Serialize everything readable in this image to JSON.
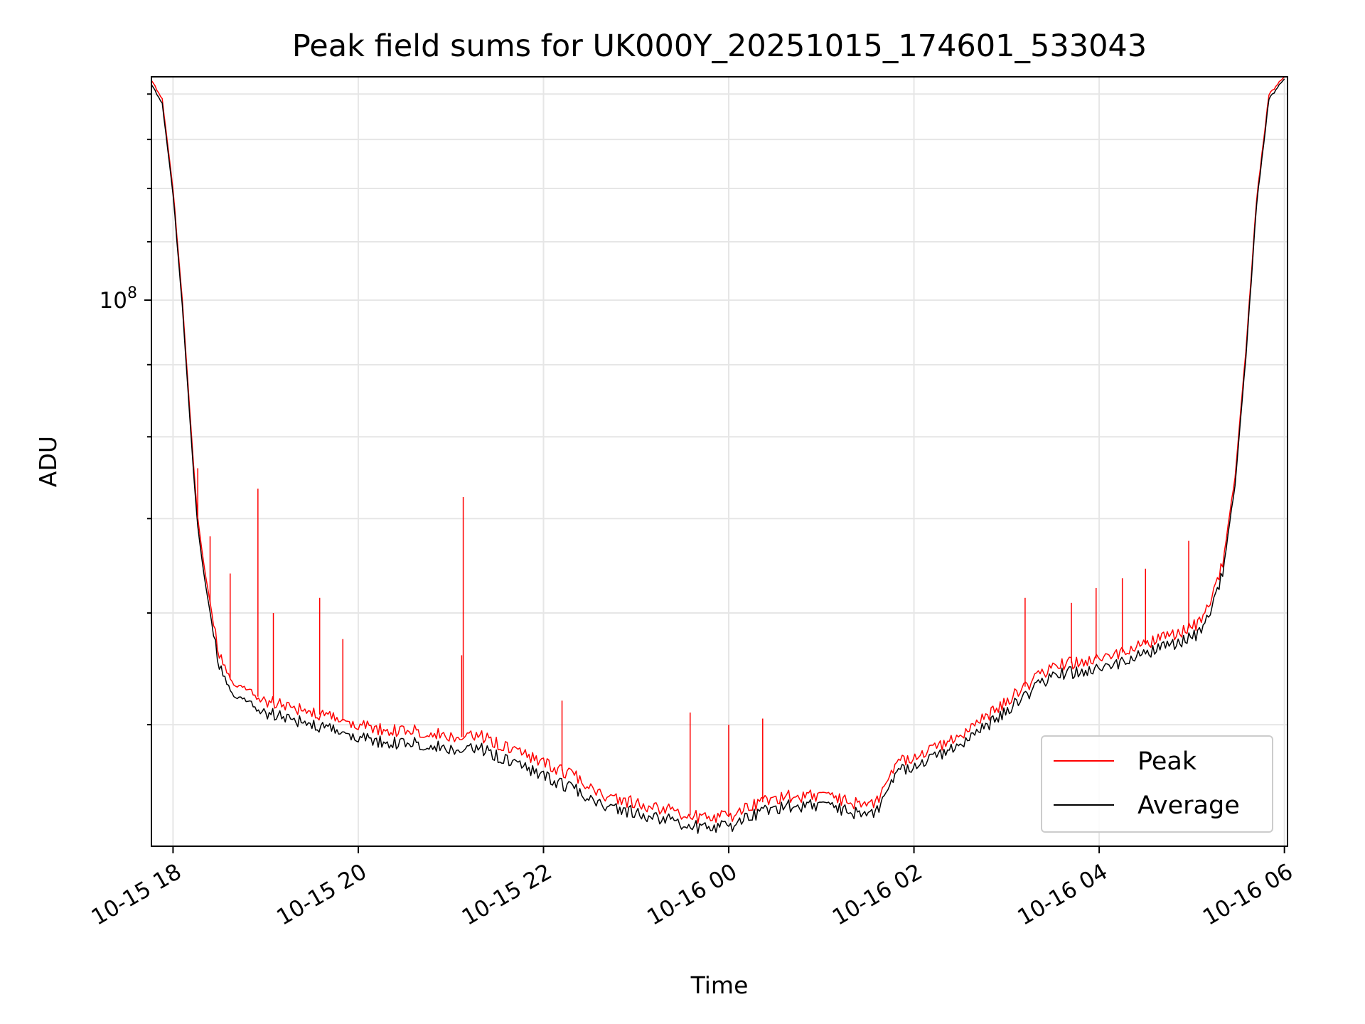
{
  "chart_data": {
    "type": "line",
    "title": "Peak field sums for UK000Y_20251015_174601_533043",
    "xlabel": "Time",
    "ylabel": "ADU",
    "yscale": "log",
    "xlim": [
      "2025-10-15T17:46",
      "2025-10-16T06:02"
    ],
    "ylim": [
      41000000,
      144000000
    ],
    "x_tick_labels": [
      "10-15 18",
      "10-15 20",
      "10-15 22",
      "10-16 00",
      "10-16 02",
      "10-16 04",
      "10-16 06"
    ],
    "y_tick_labels": [
      {
        "base": "10",
        "exp": "8",
        "value": 100000000
      }
    ],
    "grid": true,
    "legend_position": "lower right",
    "colors": {
      "peak": "#ff0000",
      "average": "#000000",
      "grid": "#e6e6e6"
    },
    "series": [
      {
        "name": "Peak",
        "x": [
          "2025-10-15T17:46",
          "2025-10-15T17:53",
          "2025-10-15T18:00",
          "2025-10-15T18:06",
          "2025-10-15T18:12",
          "2025-10-15T18:16",
          "2025-10-15T18:20",
          "2025-10-15T18:25",
          "2025-10-15T18:30",
          "2025-10-15T18:36",
          "2025-10-15T18:45",
          "2025-10-15T19:00",
          "2025-10-15T19:15",
          "2025-10-15T19:30",
          "2025-10-15T19:45",
          "2025-10-15T20:00",
          "2025-10-15T20:20",
          "2025-10-15T20:40",
          "2025-10-15T21:00",
          "2025-10-15T21:20",
          "2025-10-15T21:40",
          "2025-10-15T22:00",
          "2025-10-15T22:20",
          "2025-10-15T22:40",
          "2025-10-15T23:00",
          "2025-10-15T23:20",
          "2025-10-15T23:40",
          "2025-10-16T00:00",
          "2025-10-16T00:20",
          "2025-10-16T00:40",
          "2025-10-16T01:00",
          "2025-10-16T01:20",
          "2025-10-16T01:35",
          "2025-10-16T01:50",
          "2025-10-16T02:10",
          "2025-10-16T02:30",
          "2025-10-16T02:50",
          "2025-10-16T03:10",
          "2025-10-16T03:30",
          "2025-10-16T03:50",
          "2025-10-16T04:10",
          "2025-10-16T04:30",
          "2025-10-16T04:50",
          "2025-10-16T05:05",
          "2025-10-16T05:12",
          "2025-10-16T05:20",
          "2025-10-16T05:28",
          "2025-10-16T05:35",
          "2025-10-16T05:42",
          "2025-10-16T05:50",
          "2025-10-16T06:00"
        ],
        "y": [
          143000000,
          139000000,
          120000000,
          100000000,
          80000000,
          70000000,
          65000000,
          60000000,
          56000000,
          54000000,
          53000000,
          52000000,
          51500000,
          51000000,
          50500000,
          50000000,
          49500000,
          49500000,
          49000000,
          49000000,
          48000000,
          47000000,
          46000000,
          44500000,
          44000000,
          43500000,
          43000000,
          43000000,
          44000000,
          44500000,
          44500000,
          44000000,
          44000000,
          47000000,
          48000000,
          49000000,
          51000000,
          53000000,
          55000000,
          55500000,
          56000000,
          57000000,
          58000000,
          59000000,
          61000000,
          65000000,
          75000000,
          92000000,
          118000000,
          140000000,
          144000000
        ]
      },
      {
        "name": "Average",
        "x": [
          "2025-10-15T17:46",
          "2025-10-15T17:53",
          "2025-10-15T18:00",
          "2025-10-15T18:06",
          "2025-10-15T18:12",
          "2025-10-15T18:16",
          "2025-10-15T18:20",
          "2025-10-15T18:25",
          "2025-10-15T18:30",
          "2025-10-15T18:36",
          "2025-10-15T18:45",
          "2025-10-15T19:00",
          "2025-10-15T19:15",
          "2025-10-15T19:30",
          "2025-10-15T19:45",
          "2025-10-15T20:00",
          "2025-10-15T20:20",
          "2025-10-15T20:40",
          "2025-10-15T21:00",
          "2025-10-15T21:20",
          "2025-10-15T21:40",
          "2025-10-15T22:00",
          "2025-10-15T22:20",
          "2025-10-15T22:40",
          "2025-10-15T23:00",
          "2025-10-15T23:20",
          "2025-10-15T23:40",
          "2025-10-16T00:00",
          "2025-10-16T00:20",
          "2025-10-16T00:40",
          "2025-10-16T01:00",
          "2025-10-16T01:20",
          "2025-10-16T01:35",
          "2025-10-16T01:50",
          "2025-10-16T02:10",
          "2025-10-16T02:30",
          "2025-10-16T02:50",
          "2025-10-16T03:10",
          "2025-10-16T03:30",
          "2025-10-16T03:50",
          "2025-10-16T04:10",
          "2025-10-16T04:30",
          "2025-10-16T04:50",
          "2025-10-16T05:05",
          "2025-10-16T05:12",
          "2025-10-16T05:20",
          "2025-10-16T05:28",
          "2025-10-16T05:35",
          "2025-10-16T05:42",
          "2025-10-16T05:50",
          "2025-10-16T06:00"
        ],
        "y": [
          142000000,
          138000000,
          119000000,
          99000000,
          79000000,
          69000000,
          64000000,
          59000000,
          55000000,
          53000000,
          52000000,
          51000000,
          50500000,
          50000000,
          49500000,
          49000000,
          48500000,
          48500000,
          48000000,
          48000000,
          47000000,
          46000000,
          45000000,
          43800000,
          43300000,
          42800000,
          42300000,
          42300000,
          43300000,
          43800000,
          43800000,
          43300000,
          43300000,
          46300000,
          47300000,
          48300000,
          50200000,
          52200000,
          54200000,
          54600000,
          55100000,
          56100000,
          57100000,
          58000000,
          60000000,
          64000000,
          74000000,
          91000000,
          117000000,
          139000000,
          143500000
        ]
      }
    ],
    "spikes": [
      {
        "series": "Peak",
        "x": "2025-10-15T18:16",
        "y": 76000000
      },
      {
        "series": "Peak",
        "x": "2025-10-15T18:24",
        "y": 68000000
      },
      {
        "series": "Peak",
        "x": "2025-10-15T18:37",
        "y": 64000000
      },
      {
        "series": "Peak",
        "x": "2025-10-15T18:55",
        "y": 73500000
      },
      {
        "series": "Peak",
        "x": "2025-10-15T19:05",
        "y": 60000000
      },
      {
        "series": "Peak",
        "x": "2025-10-15T19:35",
        "y": 61500000
      },
      {
        "series": "Peak",
        "x": "2025-10-15T19:50",
        "y": 57500000
      },
      {
        "series": "Peak",
        "x": "2025-10-15T21:08",
        "y": 72500000
      },
      {
        "series": "Peak",
        "x": "2025-10-15T21:07",
        "y": 56000000
      },
      {
        "series": "Peak",
        "x": "2025-10-15T22:12",
        "y": 52000000
      },
      {
        "series": "Peak",
        "x": "2025-10-15T23:35",
        "y": 51000000
      },
      {
        "series": "Peak",
        "x": "2025-10-16T00:00",
        "y": 50000000
      },
      {
        "series": "Peak",
        "x": "2025-10-16T00:22",
        "y": 50500000
      },
      {
        "series": "Peak",
        "x": "2025-10-16T03:12",
        "y": 61500000
      },
      {
        "series": "Peak",
        "x": "2025-10-16T03:42",
        "y": 61000000
      },
      {
        "series": "Peak",
        "x": "2025-10-16T03:58",
        "y": 62500000
      },
      {
        "series": "Peak",
        "x": "2025-10-16T04:15",
        "y": 63500000
      },
      {
        "series": "Peak",
        "x": "2025-10-16T04:30",
        "y": 64500000
      },
      {
        "series": "Peak",
        "x": "2025-10-16T04:58",
        "y": 67500000
      }
    ]
  }
}
